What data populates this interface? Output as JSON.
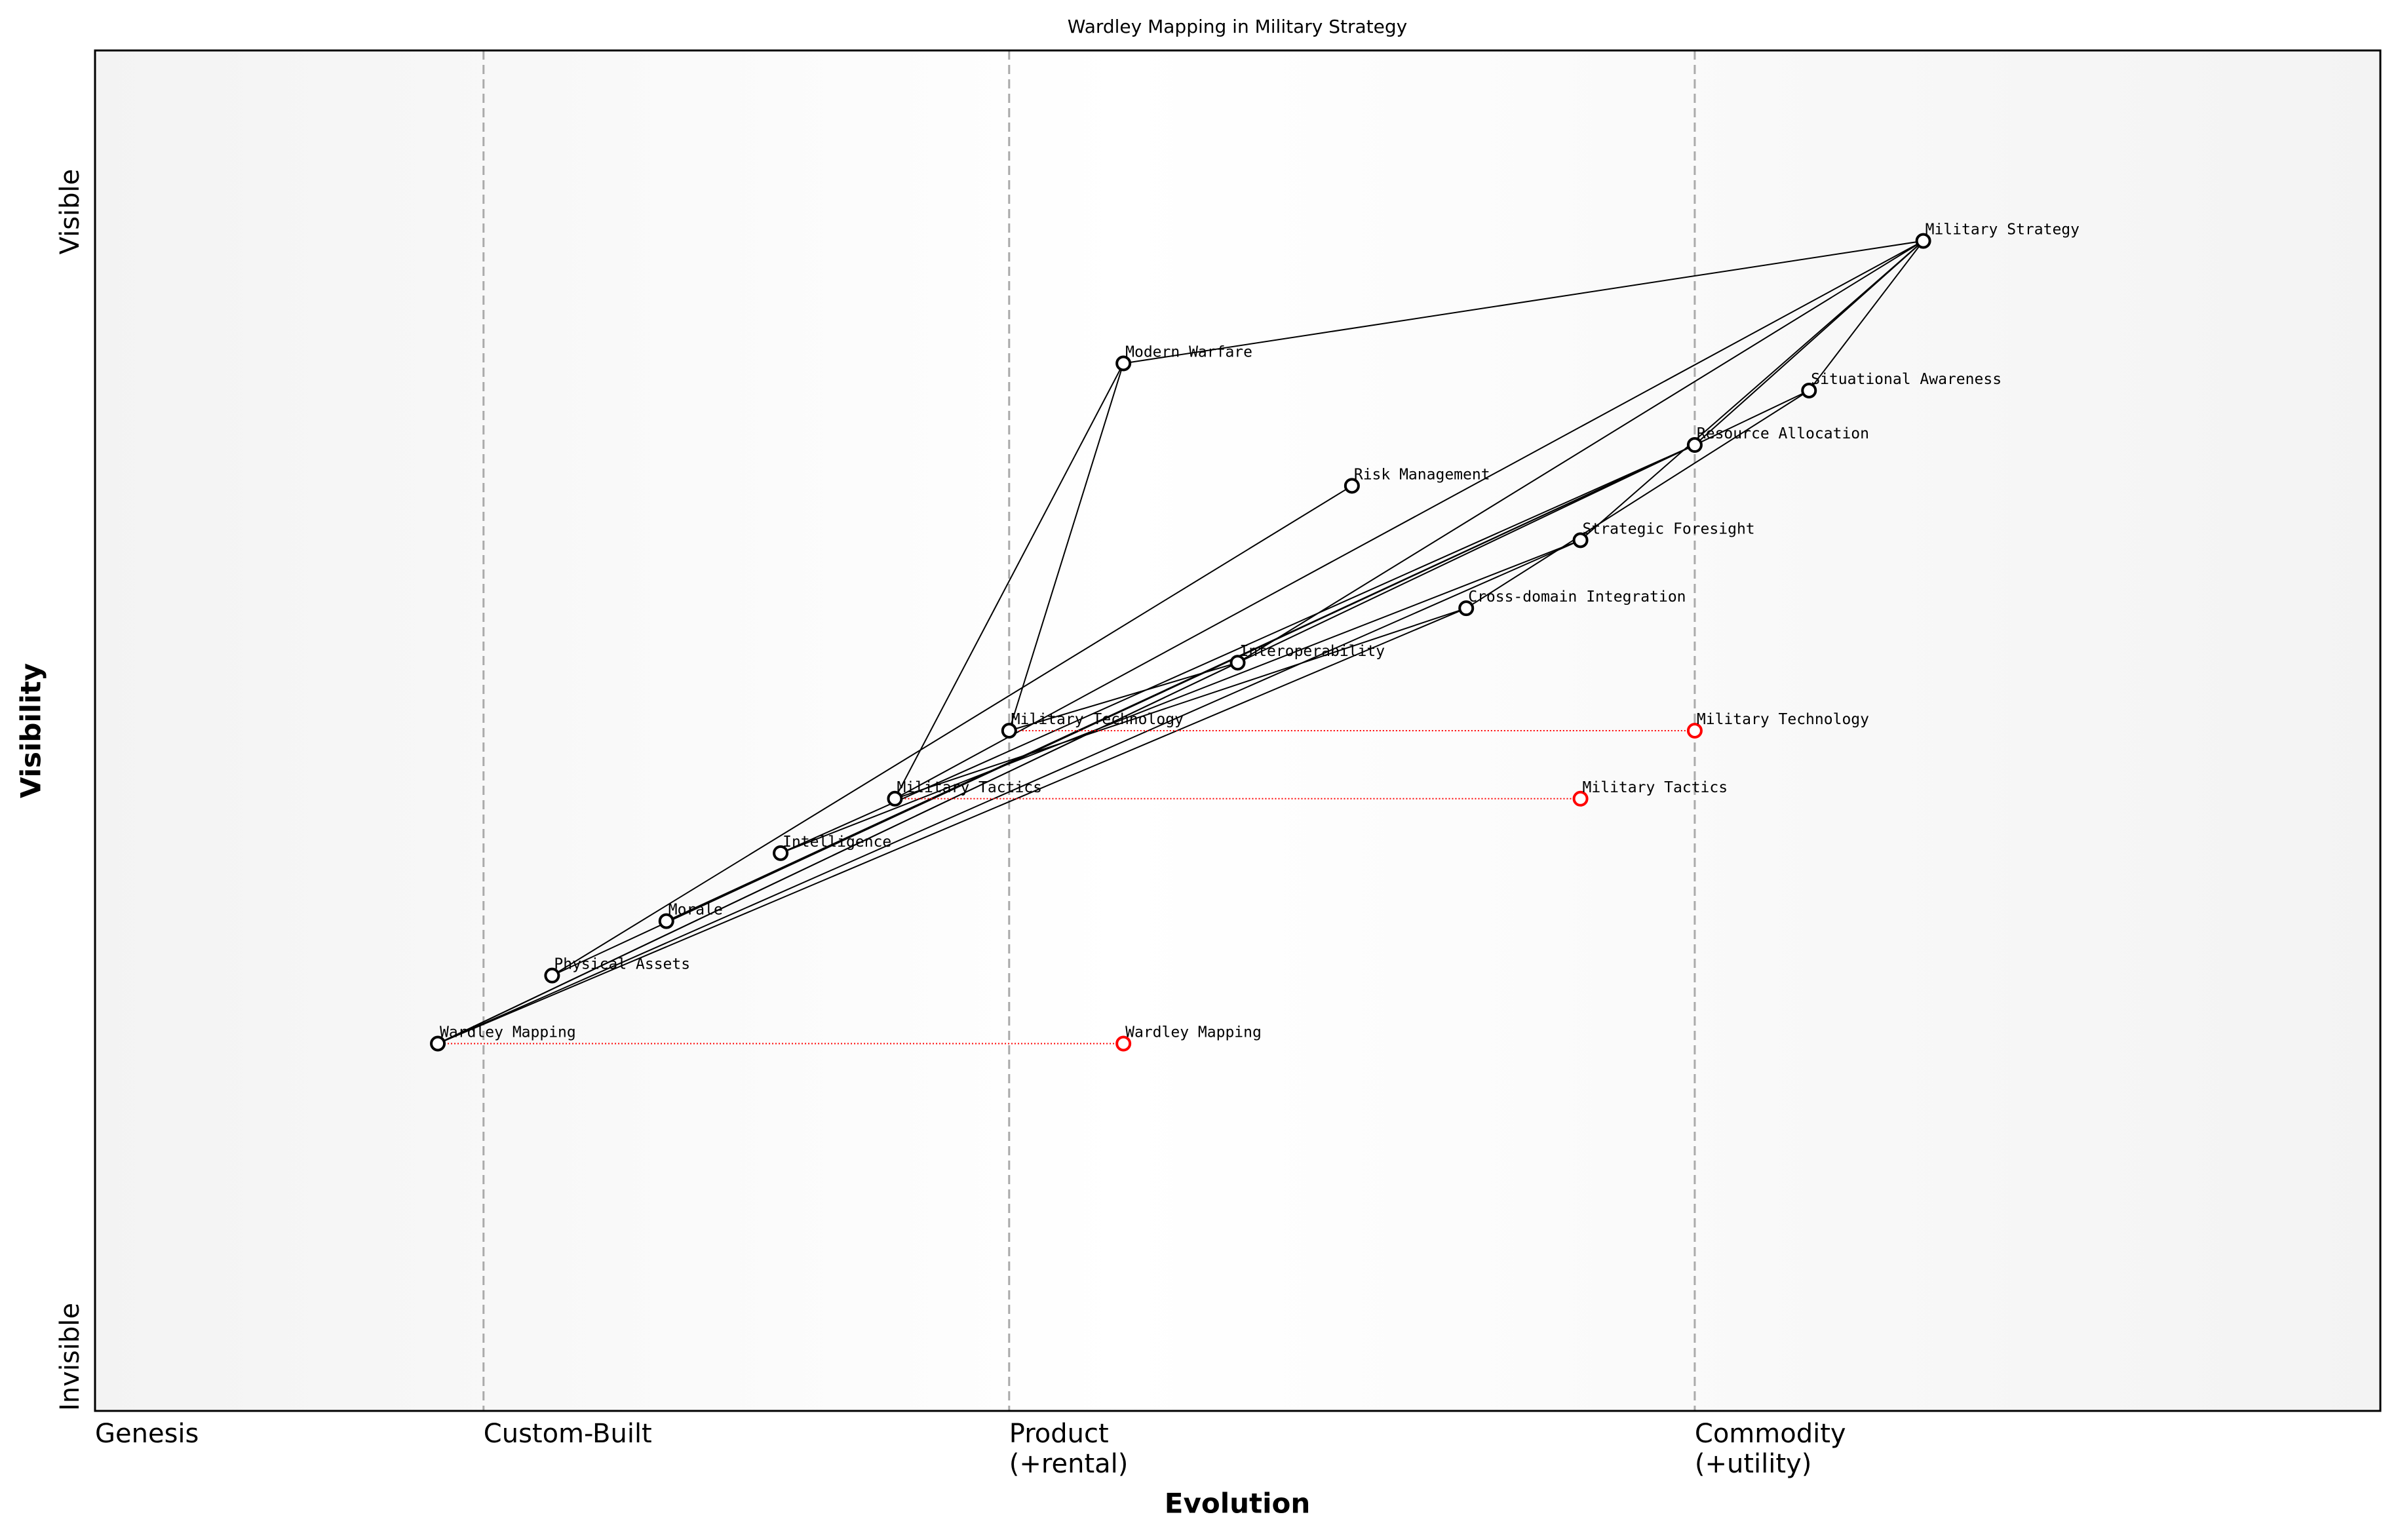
{
  "chart_data": {
    "type": "wardley",
    "title": "Wardley Mapping in Military Strategy",
    "xlabel": "Evolution",
    "ylabel": "Visibility",
    "xlim": [
      0,
      1
    ],
    "ylim": [
      0,
      1
    ],
    "xticks": [
      {
        "value": 0,
        "label": "Genesis"
      },
      {
        "value": 0.17,
        "label": "Custom-Built"
      },
      {
        "value": 0.4,
        "label": "Product\n(+rental)"
      },
      {
        "value": 0.7,
        "label": "Commodity\n(+utility)"
      }
    ],
    "yticks": [
      {
        "value": 0,
        "label": "Invisible"
      },
      {
        "value": 0.85,
        "label": "Visible"
      }
    ],
    "node_color": "#000000",
    "evolve_color": "#ff0000",
    "nodes": [
      {
        "name": "Military Strategy",
        "x": 0.8,
        "y": 0.86
      },
      {
        "name": "Modern Warfare",
        "x": 0.45,
        "y": 0.77
      },
      {
        "name": "Situational Awareness",
        "x": 0.75,
        "y": 0.75
      },
      {
        "name": "Resource Allocation",
        "x": 0.7,
        "y": 0.71
      },
      {
        "name": "Risk Management",
        "x": 0.55,
        "y": 0.68
      },
      {
        "name": "Strategic Foresight",
        "x": 0.65,
        "y": 0.64
      },
      {
        "name": "Cross-domain Integration",
        "x": 0.6,
        "y": 0.59
      },
      {
        "name": "Interoperability",
        "x": 0.5,
        "y": 0.55
      },
      {
        "name": "Military Technology",
        "x": 0.4,
        "y": 0.5,
        "evolve": 0.7
      },
      {
        "name": "Military Tactics",
        "x": 0.35,
        "y": 0.45,
        "evolve": 0.65
      },
      {
        "name": "Intelligence",
        "x": 0.3,
        "y": 0.41
      },
      {
        "name": "Morale",
        "x": 0.25,
        "y": 0.36
      },
      {
        "name": "Physical Assets",
        "x": 0.2,
        "y": 0.32
      },
      {
        "name": "Wardley Mapping",
        "x": 0.15,
        "y": 0.27,
        "evolve": 0.45
      }
    ],
    "links": [
      [
        0,
        1
      ],
      [
        0,
        2
      ],
      [
        0,
        3
      ],
      [
        0,
        5
      ],
      [
        0,
        7
      ],
      [
        0,
        9
      ],
      [
        1,
        8
      ],
      [
        1,
        9
      ],
      [
        2,
        3
      ],
      [
        2,
        6
      ],
      [
        3,
        10
      ],
      [
        3,
        11
      ],
      [
        3,
        12
      ],
      [
        3,
        13
      ],
      [
        4,
        12
      ],
      [
        5,
        10
      ],
      [
        5,
        13
      ],
      [
        6,
        9
      ],
      [
        6,
        13
      ],
      [
        7,
        8
      ],
      [
        7,
        13
      ]
    ]
  }
}
